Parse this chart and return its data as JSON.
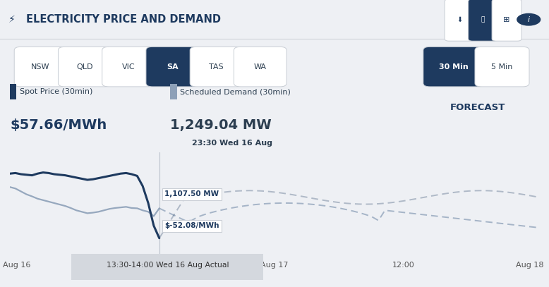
{
  "title": "ELECTRICITY PRICE AND DEMAND",
  "bg_color": "#eef0f4",
  "header_bg": "#eef0f4",
  "spot_price_label": "Spot Price (30min)",
  "spot_price_value": "$57.66/MWh",
  "demand_label": "Scheduled Demand (30min)",
  "demand_value": "1,249.04 MW",
  "demand_time": "23:30 Wed 16 Aug",
  "forecast_label": "FORECAST",
  "tabs": [
    "NSW",
    "QLD",
    "VIC",
    "SA",
    "TAS",
    "WA"
  ],
  "active_tab": "SA",
  "time_tabs": [
    "30 Min",
    "5 Min"
  ],
  "active_time_tab": "30 Min",
  "tooltip_demand": "1,107.50 MW",
  "tooltip_price": "$-52.08/MWh",
  "tooltip_time": "13:30-14:00 Wed 16 Aug Actual",
  "x_labels": [
    "Aug 16",
    "Aug 17",
    "12:00",
    "Aug 18"
  ],
  "dark_navy": "#1e3a5f",
  "gray_blue": "#8da0b3",
  "demand_color": "#8da0b8",
  "spot_color": "#1e3a5f",
  "white": "#ffffff",
  "light_gray": "#e8eaed",
  "mid_gray": "#cccccc",
  "text_dark": "#2c3e50",
  "text_med": "#555555",
  "tooltip_bg": "#ffffff",
  "tab_border": "#c8cdd4"
}
